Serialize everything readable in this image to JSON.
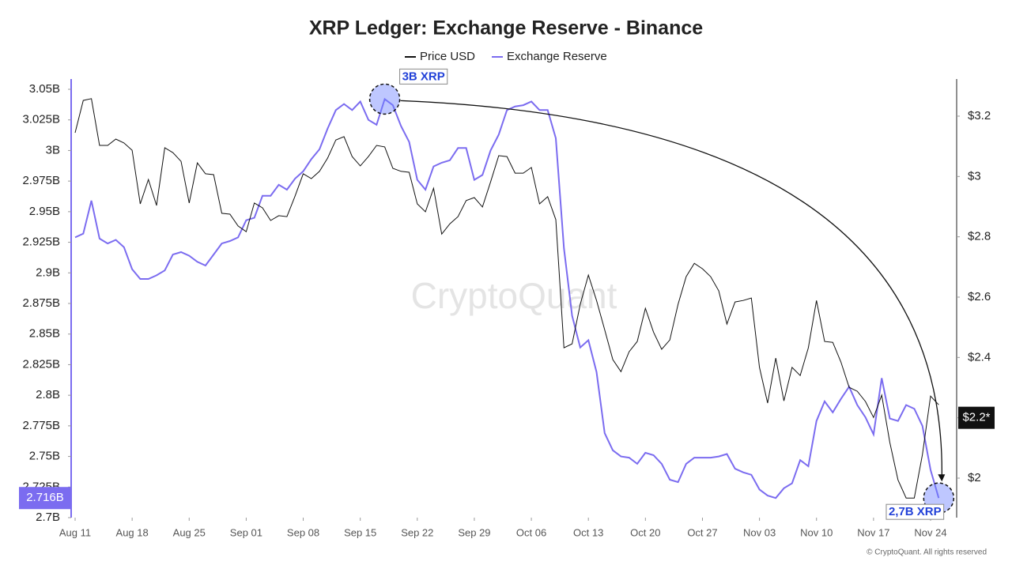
{
  "chart_data": {
    "type": "line",
    "title": "XRP Ledger: Exchange Reserve - Binance",
    "categories": [
      "Aug 11",
      null,
      null,
      null,
      null,
      null,
      null,
      "Aug 18",
      null,
      null,
      null,
      null,
      null,
      null,
      "Aug 25",
      null,
      null,
      null,
      null,
      null,
      null,
      "Sep 01",
      null,
      null,
      null,
      null,
      null,
      null,
      "Sep 08",
      null,
      null,
      null,
      null,
      null,
      null,
      "Sep 15",
      null,
      null,
      null,
      null,
      null,
      null,
      "Sep 22",
      null,
      null,
      null,
      null,
      null,
      null,
      "Sep 29",
      null,
      null,
      null,
      null,
      null,
      null,
      "Oct 06",
      null,
      null,
      null,
      null,
      null,
      null,
      "Oct 13",
      null,
      null,
      null,
      null,
      null,
      null,
      "Oct 20",
      null,
      null,
      null,
      null,
      null,
      null,
      "Oct 27",
      null,
      null,
      null,
      null,
      null,
      null,
      "Nov 03",
      null,
      null,
      null,
      null,
      null,
      null,
      "Nov 10",
      null,
      null,
      null,
      null,
      null,
      null,
      "Nov 17",
      null,
      null,
      null,
      null,
      null,
      null,
      "Nov 24",
      null
    ],
    "series": [
      {
        "name": "Price USD",
        "color": "#111111",
        "axis": "y2",
        "values": [
          3.145,
          3.252,
          3.258,
          3.103,
          3.103,
          3.124,
          3.111,
          3.087,
          2.909,
          2.99,
          2.904,
          3.095,
          3.079,
          3.05,
          2.912,
          3.045,
          3.009,
          3.006,
          2.878,
          2.875,
          2.836,
          2.817,
          2.912,
          2.896,
          2.854,
          2.87,
          2.867,
          2.935,
          3.009,
          2.993,
          3.017,
          3.061,
          3.121,
          3.132,
          3.066,
          3.035,
          3.066,
          3.103,
          3.098,
          3.027,
          3.017,
          3.014,
          2.909,
          2.883,
          2.961,
          2.809,
          2.843,
          2.867,
          2.92,
          2.93,
          2.899,
          2.982,
          3.069,
          3.066,
          3.011,
          3.011,
          3.03,
          2.909,
          2.933,
          2.857,
          2.432,
          2.445,
          2.576,
          2.673,
          2.589,
          2.492,
          2.393,
          2.353,
          2.419,
          2.453,
          2.563,
          2.484,
          2.427,
          2.458,
          2.576,
          2.668,
          2.712,
          2.694,
          2.668,
          2.621,
          2.511,
          2.584,
          2.589,
          2.597,
          2.367,
          2.249,
          2.398,
          2.256,
          2.367,
          2.34,
          2.432,
          2.589,
          2.453,
          2.45,
          2.385,
          2.301,
          2.288,
          2.254,
          2.201,
          2.275,
          2.118,
          1.994,
          1.934,
          1.934,
          2.078,
          2.272,
          2.243
        ]
      },
      {
        "name": "Exchange Reserve",
        "color": "#7b6cf0",
        "axis": "y",
        "values": [
          2.929,
          2.932,
          2.959,
          2.928,
          2.924,
          2.927,
          2.921,
          2.903,
          2.895,
          2.895,
          2.898,
          2.902,
          2.915,
          2.917,
          2.914,
          2.909,
          2.906,
          2.915,
          2.924,
          2.926,
          2.929,
          2.943,
          2.945,
          2.963,
          2.963,
          2.972,
          2.968,
          2.977,
          2.983,
          2.993,
          3.001,
          3.018,
          3.033,
          3.038,
          3.033,
          3.04,
          3.025,
          3.021,
          3.042,
          3.037,
          3.02,
          3.007,
          2.976,
          2.968,
          2.987,
          2.99,
          2.992,
          3.002,
          3.002,
          2.976,
          2.98,
          3.0,
          3.013,
          3.033,
          3.036,
          3.037,
          3.04,
          3.033,
          3.033,
          3.01,
          2.92,
          2.865,
          2.839,
          2.845,
          2.819,
          2.769,
          2.755,
          2.75,
          2.749,
          2.744,
          2.753,
          2.751,
          2.744,
          2.731,
          2.729,
          2.744,
          2.749,
          2.749,
          2.749,
          2.75,
          2.752,
          2.74,
          2.737,
          2.735,
          2.723,
          2.718,
          2.716,
          2.724,
          2.728,
          2.747,
          2.742,
          2.779,
          2.795,
          2.786,
          2.797,
          2.807,
          2.792,
          2.782,
          2.768,
          2.814,
          2.781,
          2.779,
          2.792,
          2.789,
          2.775,
          2.739,
          2.716
        ]
      }
    ],
    "ylim": [
      2.7,
      3.05
    ],
    "yticks": [
      {
        "value": 2.7,
        "label": "2.7B"
      },
      {
        "value": 2.725,
        "label": "2.725B"
      },
      {
        "value": 2.75,
        "label": "2.75B"
      },
      {
        "value": 2.775,
        "label": "2.775B"
      },
      {
        "value": 2.8,
        "label": "2.8B"
      },
      {
        "value": 2.825,
        "label": "2.825B"
      },
      {
        "value": 2.85,
        "label": "2.85B"
      },
      {
        "value": 2.875,
        "label": "2.875B"
      },
      {
        "value": 2.9,
        "label": "2.9B"
      },
      {
        "value": 2.925,
        "label": "2.925B"
      },
      {
        "value": 2.95,
        "label": "2.95B"
      },
      {
        "value": 2.975,
        "label": "2.975B"
      },
      {
        "value": 3,
        "label": "3B"
      },
      {
        "value": 3.025,
        "label": "3.025B"
      },
      {
        "value": 3.05,
        "label": "3.05B"
      }
    ],
    "y2lim": [
      1.869,
      3.289
    ],
    "y2ticks": [
      {
        "value": 2,
        "label": "$2"
      },
      {
        "value": 2.2,
        "label": "$2.2"
      },
      {
        "value": 2.4,
        "label": "$2.4"
      },
      {
        "value": 2.6,
        "label": "$2.6"
      },
      {
        "value": 2.8,
        "label": "$2.8"
      },
      {
        "value": 3,
        "label": "$3"
      },
      {
        "value": 3.2,
        "label": "$3.2"
      }
    ],
    "current_labels": [
      {
        "axis": "y",
        "value": 2.716,
        "label": "2.716B"
      },
      {
        "axis": "y2",
        "value": 2.2,
        "label": "$2.2*"
      }
    ],
    "annotations": [
      "3B XRP",
      "2,7B XRP"
    ],
    "watermark": "CryptoQuant",
    "footer": "© CryptoQuant. All rights reserved"
  }
}
